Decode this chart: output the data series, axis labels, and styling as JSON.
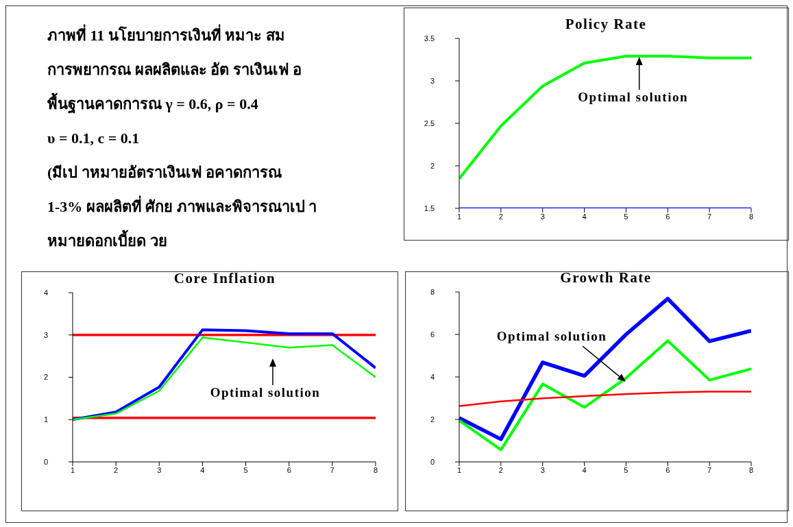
{
  "chart_data": [
    {
      "type": "other",
      "title": "ภาพที่ 11 นโยบายการเงินที่ หมาะ สม",
      "annotations": [
        "การพยากรณ ผลผลิตและ อัต ราเงินเฟ อ",
        "พื้นฐานคาดการณ γ = 0.6, ρ = 0.4",
        "υ = 0.1, c = 0.1",
        "(มีเป าหมายอัตราเงินเฟ อคาดการณ",
        "1-3% ผลผลิตที่ ศักย ภาพและพิจารณาเป า",
        "หมายดอกเบี้ยด วย"
      ]
    },
    {
      "type": "line",
      "title": "Policy Rate",
      "x": [
        1,
        2,
        3,
        4,
        5,
        6,
        7,
        8
      ],
      "xlim": [
        1,
        8
      ],
      "xticks": [
        1,
        2,
        3,
        4,
        5,
        6,
        7,
        8
      ],
      "ylim": [
        1.5,
        3.5
      ],
      "yticks": [
        1.5,
        2,
        2.5,
        3,
        3.5
      ],
      "grid": false,
      "legend": false,
      "series": [
        {
          "color": "#00ff00",
          "values": [
            1.85,
            2.47,
            2.94,
            3.21,
            3.29,
            3.29,
            3.27,
            3.27
          ]
        },
        {
          "color": "#0000ff",
          "values": [
            1.5,
            1.5,
            1.5,
            1.5,
            1.5,
            1.5,
            1.5,
            1.5
          ]
        }
      ],
      "annotations": [
        {
          "text": "Optimal solution",
          "x": 5.3,
          "y": 3.29
        }
      ]
    },
    {
      "type": "line",
      "title": "Core Inflation",
      "x": [
        1,
        2,
        3,
        4,
        5,
        6,
        7,
        8
      ],
      "xlim": [
        1,
        8
      ],
      "xticks": [
        1,
        2,
        3,
        4,
        5,
        6,
        7,
        8
      ],
      "ylim": [
        0,
        4
      ],
      "yticks": [
        0,
        1,
        2,
        3,
        4
      ],
      "grid": false,
      "legend": false,
      "series": [
        {
          "color": "#0000ff",
          "values": [
            1.0,
            1.18,
            1.77,
            3.12,
            3.1,
            3.03,
            3.03,
            2.22
          ]
        },
        {
          "color": "#00ff00",
          "values": [
            1.0,
            1.14,
            1.68,
            2.94,
            2.82,
            2.7,
            2.76,
            2.0
          ]
        }
      ],
      "ref_lines": [
        {
          "axis": "y",
          "value": 3,
          "color": "#ff0000"
        },
        {
          "axis": "y",
          "value": 1.04,
          "color": "#ff0000"
        }
      ],
      "annotations": [
        "Optimal solution"
      ]
    },
    {
      "type": "line",
      "title": "Growth Rate",
      "x": [
        1,
        2,
        3,
        4,
        5,
        6,
        7,
        8
      ],
      "xlim": [
        1,
        8
      ],
      "xticks": [
        1,
        2,
        3,
        4,
        5,
        6,
        7,
        8
      ],
      "ylim": [
        0,
        8
      ],
      "yticks": [
        0,
        2,
        4,
        6,
        8
      ],
      "grid": false,
      "legend": false,
      "series": [
        {
          "color": "#0000ff",
          "values": [
            2.07,
            1.07,
            4.68,
            4.05,
            6.0,
            7.68,
            5.68,
            6.17
          ]
        },
        {
          "color": "#00ff00",
          "values": [
            1.95,
            0.57,
            3.67,
            2.57,
            3.95,
            5.7,
            3.85,
            4.38
          ]
        },
        {
          "color": "#ff0000",
          "values": [
            2.63,
            2.85,
            2.99,
            3.1,
            3.19,
            3.27,
            3.31,
            3.31
          ]
        }
      ],
      "annotations": [
        "Optimal solution"
      ]
    }
  ]
}
